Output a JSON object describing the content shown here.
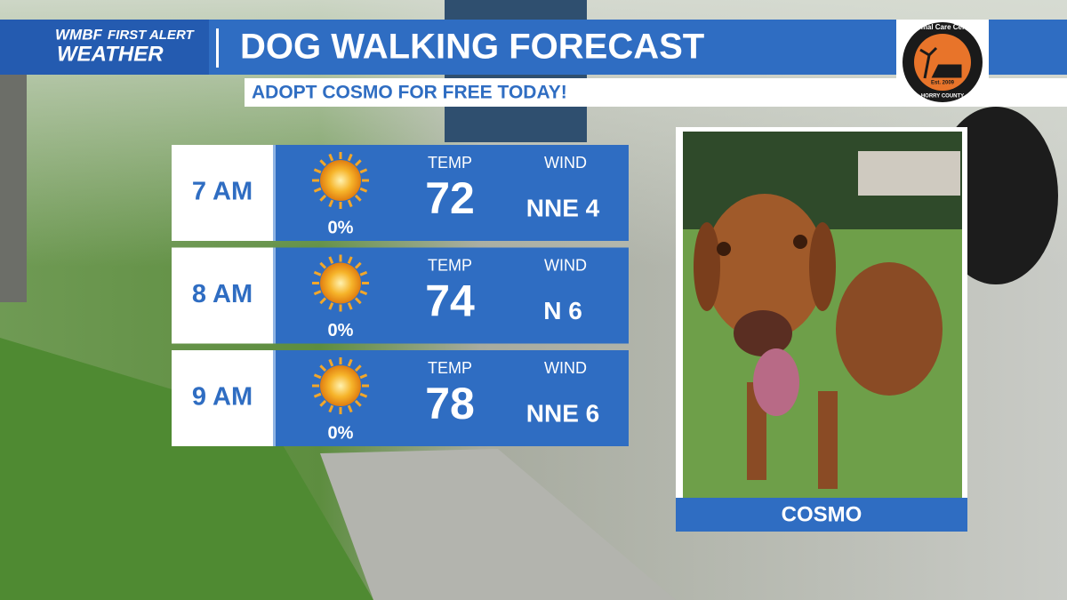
{
  "header": {
    "brand": "WMBF",
    "brand_tag": "FIRST ALERT",
    "brand_sub": "WEATHER",
    "title": "DOG WALKING FORECAST",
    "subtitle": "ADOPT COSMO FOR FREE TODAY!"
  },
  "logo": {
    "name": "Animal Care Center",
    "est": "Est. 2009",
    "county": "HORRY COUNTY"
  },
  "forecast": {
    "temp_label": "TEMP",
    "wind_label": "WIND",
    "rows": [
      {
        "time": "7 AM",
        "precip": "0%",
        "temp": 72,
        "wind": "NNE 4"
      },
      {
        "time": "8 AM",
        "precip": "0%",
        "temp": 74,
        "wind": "N 6"
      },
      {
        "time": "9 AM",
        "precip": "0%",
        "temp": 78,
        "wind": "NNE 6"
      }
    ]
  },
  "photo": {
    "caption": "COSMO"
  }
}
